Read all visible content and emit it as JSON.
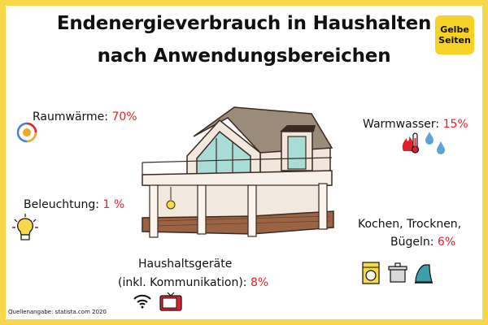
{
  "header": {
    "title_line1": "Endenergieverbrauch in Haushalten",
    "title_line2": "nach Anwendungsbereichen"
  },
  "logo": {
    "line1": "Gelbe",
    "line2": "Seiten"
  },
  "source": "Quellenangabe: statista.com 2020",
  "colors": {
    "border": "#f7d84a",
    "value": "#e2202a",
    "logo_bg": "#f7d226"
  },
  "chart_data": {
    "type": "table",
    "unit": "%",
    "categories": [
      {
        "label": "Raumwärme:",
        "value": 70,
        "value_text": "70%",
        "icons": [
          "thermostat-icon"
        ]
      },
      {
        "label": "Warmwasser:",
        "value": 15,
        "value_text": "15%",
        "icons": [
          "flame-thermometer-icon",
          "water-drops-icon"
        ]
      },
      {
        "label": "Beleuchtung:",
        "value": 1,
        "value_text": "1 %",
        "icons": [
          "light-bulb-icon"
        ]
      },
      {
        "label": "Kochen, Trocknen,",
        "label2": "Bügeln:",
        "value": 6,
        "value_text": "6%",
        "icons": [
          "washing-machine-icon",
          "cooking-pot-icon",
          "iron-icon"
        ]
      },
      {
        "label": "Haushaltsgeräte",
        "label2": "(inkl. Kommunikation):",
        "value": 8,
        "value_text": "8%",
        "icons": [
          "wifi-icon",
          "tv-icon"
        ]
      }
    ]
  }
}
